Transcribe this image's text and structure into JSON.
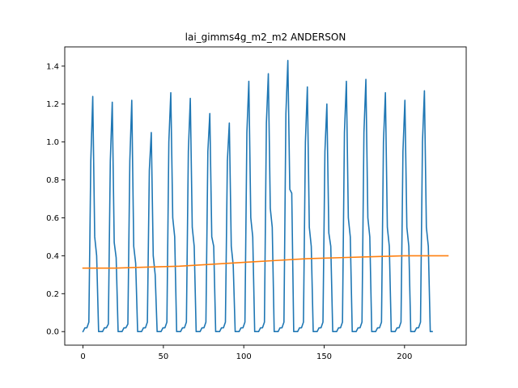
{
  "chart_data": {
    "type": "line",
    "title": "lai_gimms4g_m2_m2 ANDERSON",
    "xlabel": "",
    "ylabel": "",
    "xlim": [
      -11.35,
      238.35
    ],
    "ylim": [
      -0.0715,
      1.5015
    ],
    "xticks": [
      0,
      50,
      100,
      150,
      200
    ],
    "yticks": [
      0.0,
      0.2,
      0.4,
      0.6,
      0.8,
      1.0,
      1.2,
      1.4
    ],
    "xtick_labels": [
      "0",
      "50",
      "100",
      "150",
      "200"
    ],
    "ytick_labels": [
      "0.0",
      "0.2",
      "0.4",
      "0.6",
      "0.8",
      "1.0",
      "1.2",
      "1.4"
    ],
    "grid": false,
    "legend": "none",
    "series": [
      {
        "color": "#1f77b4",
        "values": [
          0,
          0.02,
          0.02,
          0.05,
          0.9,
          1.24,
          0.5,
          0.4,
          0,
          0,
          0,
          0.02,
          0.02,
          0.04,
          0.9,
          1.21,
          0.47,
          0.39,
          0,
          0,
          0,
          0.02,
          0.02,
          0.04,
          0.9,
          1.22,
          0.45,
          0.36,
          0,
          0,
          0,
          0.02,
          0.02,
          0.05,
          0.85,
          1.05,
          0.4,
          0.3,
          0,
          0,
          0,
          0.02,
          0.02,
          0.05,
          1.0,
          1.26,
          0.6,
          0.5,
          0,
          0,
          0,
          0.02,
          0.02,
          0.05,
          0.95,
          1.23,
          0.55,
          0.45,
          0,
          0,
          0,
          0.02,
          0.02,
          0.05,
          0.95,
          1.15,
          0.5,
          0.45,
          0,
          0,
          0,
          0.02,
          0.02,
          0.05,
          0.9,
          1.1,
          0.45,
          0.35,
          0,
          0,
          0,
          0.02,
          0.02,
          0.05,
          1.05,
          1.32,
          0.6,
          0.5,
          0,
          0,
          0,
          0.02,
          0.02,
          0.05,
          1.1,
          1.36,
          0.65,
          0.55,
          0,
          0,
          0,
          0.02,
          0.02,
          0.05,
          1.15,
          1.43,
          0.75,
          0.73,
          0,
          0,
          0,
          0.02,
          0.02,
          0.05,
          1.0,
          1.29,
          0.55,
          0.45,
          0,
          0,
          0,
          0.02,
          0.02,
          0.05,
          0.95,
          1.2,
          0.52,
          0.45,
          0,
          0,
          0,
          0.02,
          0.02,
          0.05,
          1.05,
          1.32,
          0.6,
          0.5,
          0,
          0,
          0,
          0.02,
          0.02,
          0.05,
          1.05,
          1.33,
          0.6,
          0.5,
          0,
          0,
          0,
          0.02,
          0.02,
          0.05,
          1.0,
          1.26,
          0.55,
          0.45,
          0,
          0,
          0,
          0.02,
          0.02,
          0.05,
          0.95,
          1.22,
          0.55,
          0.45,
          0,
          0,
          0,
          0.02,
          0.02,
          0.05,
          1.0,
          1.27,
          0.55,
          0.45,
          0,
          0
        ],
        "x_start": 0,
        "x_step": 1.2135
      },
      {
        "color": "#ff7f0e",
        "x": [
          0,
          20,
          40,
          60,
          80,
          100,
          120,
          140,
          160,
          180,
          200,
          220,
          227
        ],
        "values": [
          0.335,
          0.335,
          0.34,
          0.345,
          0.355,
          0.365,
          0.375,
          0.385,
          0.39,
          0.395,
          0.4,
          0.4,
          0.4
        ]
      }
    ]
  }
}
